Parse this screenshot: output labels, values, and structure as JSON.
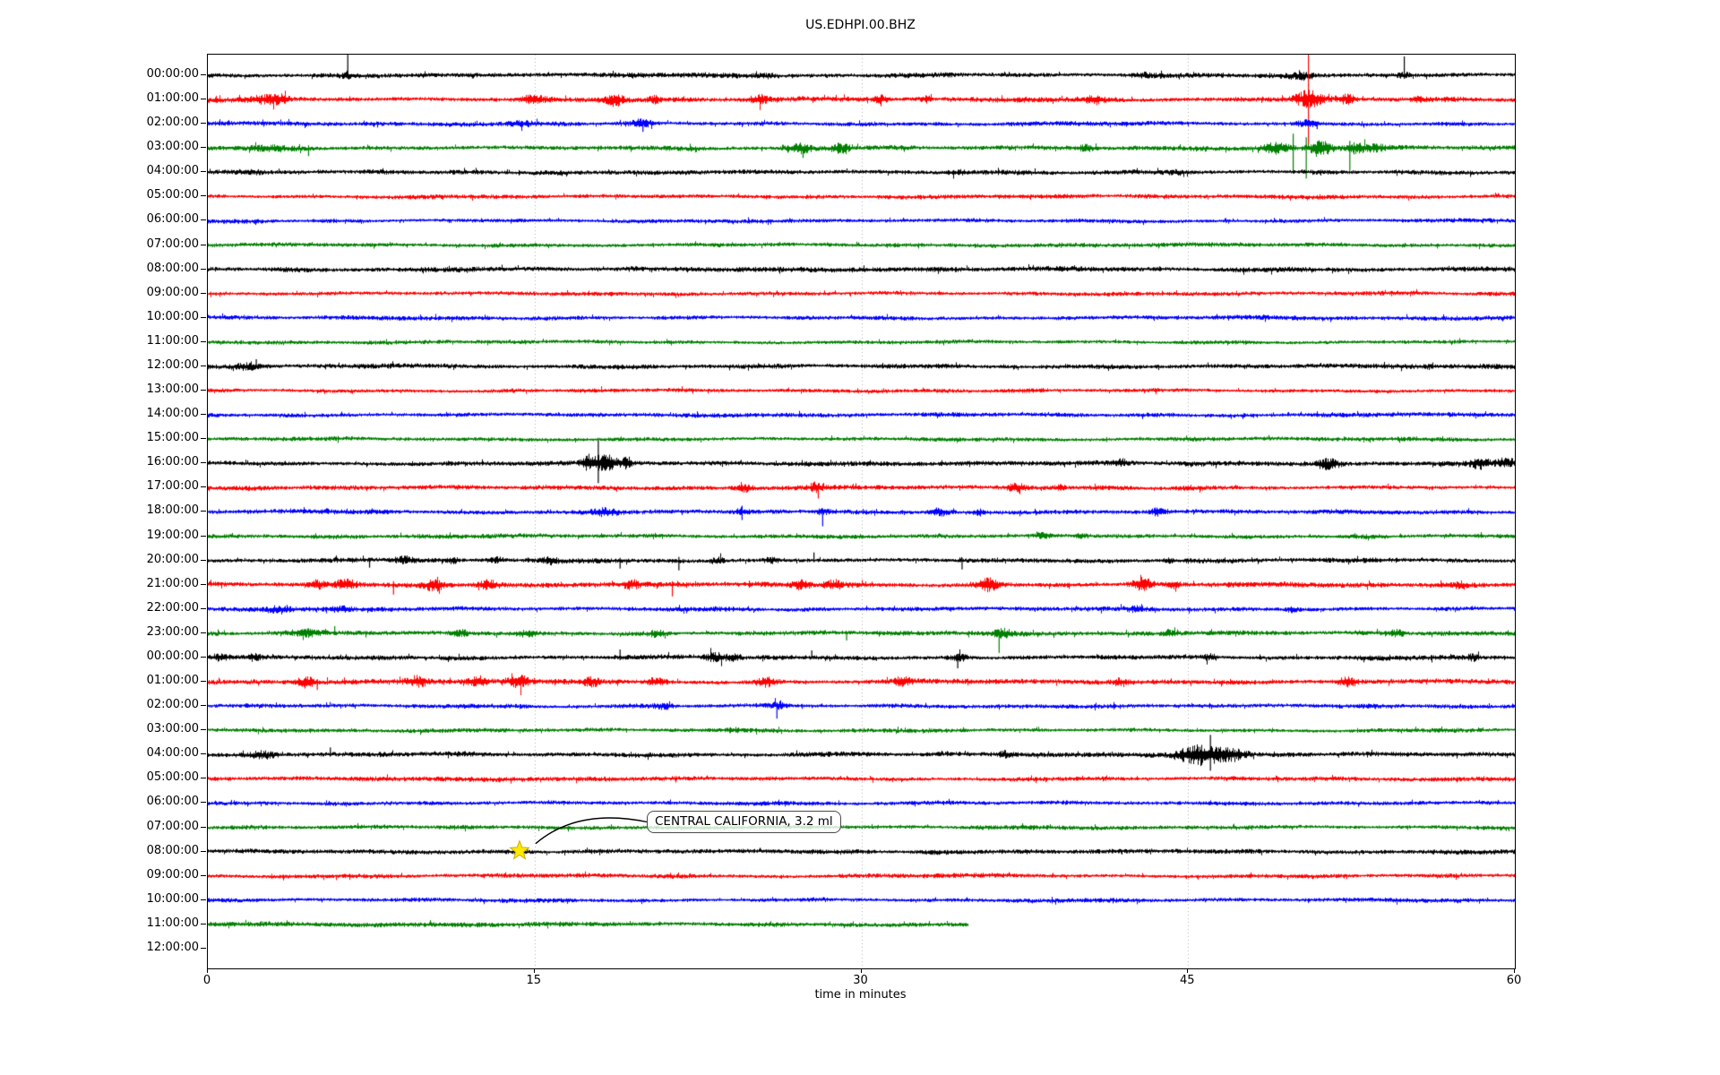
{
  "chart_data": {
    "type": "line",
    "subtype": "seismic-helicorder-dayplot",
    "title": "US.EDHPI.00.BHZ",
    "xlabel": "time in minutes",
    "xlim": [
      0,
      60
    ],
    "x_ticks": [
      0,
      15,
      30,
      45,
      60
    ],
    "minutes_per_row": 60,
    "grid": {
      "minutes": [
        15,
        30,
        45
      ],
      "color": "#b0b0b0",
      "style": "dotted"
    },
    "spine_color": "#000000",
    "background_color": "#ffffff",
    "trace_color_cycle": [
      "#000000",
      "#ff0000",
      "#0000ff",
      "#008000"
    ],
    "annotation": {
      "text": "CENTRAL CALIFORNIA, 3.2 ml",
      "row_index": 32,
      "row_label": "08:00:00",
      "minute": 14.35,
      "box_fill": "rgba(255,255,255,0.78)",
      "box_border": "#4a4a4a",
      "arrow_color": "#000000"
    },
    "marker": {
      "shape": "star",
      "fill": "#ffe900",
      "edge": "#c9b200",
      "row_index": 32,
      "minute": 14.35,
      "size": 11
    },
    "rows": [
      {
        "label": "00:00:00",
        "color_index": 0,
        "amp": 2.5,
        "end": 60,
        "events": [
          {
            "m": 6.4,
            "su": 23,
            "sd": 4
          },
          {
            "m": 6.4,
            "a": 2,
            "w": 0.2
          },
          {
            "m": 25.6,
            "a": 1.5,
            "w": 0.4
          },
          {
            "m": 43.0,
            "a": 1.5,
            "w": 0.3
          },
          {
            "m": 50.2,
            "a": 3,
            "w": 0.4
          },
          {
            "m": 54.9,
            "su": 21,
            "sd": 4
          },
          {
            "m": 54.9,
            "a": 2,
            "w": 0.2
          }
        ]
      },
      {
        "label": "01:00:00",
        "color_index": 1,
        "amp": 2.6,
        "end": 60,
        "events": [
          {
            "m": 2.6,
            "a": 3,
            "w": 0.5
          },
          {
            "m": 3.3,
            "a": 4,
            "w": 0.3
          },
          {
            "m": 14.9,
            "a": 4,
            "w": 0.35
          },
          {
            "m": 18.7,
            "a": 5,
            "w": 0.3
          },
          {
            "m": 20.5,
            "a": 3,
            "w": 0.2
          },
          {
            "m": 25.3,
            "a": 4,
            "w": 0.3
          },
          {
            "m": 30.9,
            "a": 3.5,
            "w": 0.25
          },
          {
            "m": 33.0,
            "a": 3,
            "w": 0.2
          },
          {
            "m": 40.7,
            "a": 3.5,
            "w": 0.3
          },
          {
            "m": 50.5,
            "su": 50,
            "sd": 52
          },
          {
            "m": 50.5,
            "a": 8,
            "w": 0.45
          },
          {
            "m": 52.3,
            "a": 4,
            "w": 0.3
          },
          {
            "m": 55.6,
            "a": 2,
            "w": 0.2
          }
        ]
      },
      {
        "label": "02:00:00",
        "color_index": 2,
        "amp": 2.3,
        "end": 60,
        "events": [
          {
            "m": 14.3,
            "a": 2.5,
            "w": 0.4
          },
          {
            "m": 19.9,
            "a": 3.5,
            "w": 0.3
          },
          {
            "m": 19.95,
            "sd": 9,
            "su": 3
          },
          {
            "m": 50.4,
            "a": 3,
            "w": 0.35
          },
          {
            "m": 50.9,
            "sd": 6
          }
        ]
      },
      {
        "label": "03:00:00",
        "color_index": 3,
        "amp": 2.5,
        "end": 60,
        "events": [
          {
            "m": 2.8,
            "a": 2.5,
            "w": 0.8
          },
          {
            "m": 4.6,
            "sd": 9,
            "su": 3
          },
          {
            "m": 27.2,
            "a": 4,
            "w": 0.4
          },
          {
            "m": 27.3,
            "sd": 11
          },
          {
            "m": 29.0,
            "a": 4,
            "w": 0.3
          },
          {
            "m": 40.3,
            "a": 2.5,
            "w": 0.25
          },
          {
            "m": 49.0,
            "a": 5,
            "w": 0.4
          },
          {
            "m": 49.8,
            "su": 16,
            "sd": 28
          },
          {
            "m": 50.4,
            "su": 12,
            "sd": 34
          },
          {
            "m": 51.1,
            "a": 8,
            "w": 0.35
          },
          {
            "m": 52.4,
            "su": 8,
            "sd": 25
          },
          {
            "m": 52.7,
            "a": 5,
            "w": 0.3
          },
          {
            "m": 53.6,
            "a": 3,
            "w": 0.3
          }
        ]
      },
      {
        "label": "04:00:00",
        "color_index": 0,
        "amp": 2.4,
        "end": 60,
        "events": [
          {
            "m": 2.0,
            "a": 1.5,
            "w": 0.5
          },
          {
            "m": 34.3,
            "a": 1.5,
            "w": 0.4
          },
          {
            "m": 44.6,
            "a": 1.5,
            "w": 0.3
          }
        ]
      },
      {
        "label": "05:00:00",
        "color_index": 1,
        "amp": 2.2,
        "end": 60,
        "events": []
      },
      {
        "label": "06:00:00",
        "color_index": 2,
        "amp": 2.1,
        "end": 60,
        "events": []
      },
      {
        "label": "07:00:00",
        "color_index": 3,
        "amp": 2.1,
        "end": 60,
        "events": []
      },
      {
        "label": "08:00:00",
        "color_index": 0,
        "amp": 2.6,
        "end": 60,
        "events": []
      },
      {
        "label": "09:00:00",
        "color_index": 1,
        "amp": 2.2,
        "end": 60,
        "events": []
      },
      {
        "label": "10:00:00",
        "color_index": 2,
        "amp": 2.2,
        "end": 60,
        "events": []
      },
      {
        "label": "11:00:00",
        "color_index": 3,
        "amp": 2.1,
        "end": 60,
        "events": []
      },
      {
        "label": "12:00:00",
        "color_index": 0,
        "amp": 2.6,
        "end": 60,
        "events": [
          {
            "m": 1.8,
            "a": 2.5,
            "w": 0.4
          },
          {
            "m": 2.2,
            "su": 8
          }
        ]
      },
      {
        "label": "13:00:00",
        "color_index": 1,
        "amp": 2.2,
        "end": 60,
        "events": []
      },
      {
        "label": "14:00:00",
        "color_index": 2,
        "amp": 2.2,
        "end": 60,
        "events": []
      },
      {
        "label": "15:00:00",
        "color_index": 3,
        "amp": 2.2,
        "end": 60,
        "events": []
      },
      {
        "label": "16:00:00",
        "color_index": 0,
        "amp": 2.5,
        "end": 60,
        "events": [
          {
            "m": 17.5,
            "a": 8,
            "w": 0.25
          },
          {
            "m": 17.9,
            "su": 26,
            "sd": 22
          },
          {
            "m": 18.3,
            "a": 9,
            "w": 0.35
          },
          {
            "m": 19.2,
            "a": 6,
            "w": 0.15
          },
          {
            "m": 41.9,
            "a": 2.5,
            "w": 0.2
          },
          {
            "m": 51.4,
            "a": 5,
            "w": 0.4
          },
          {
            "m": 58.4,
            "a": 5,
            "w": 0.3
          },
          {
            "m": 59.6,
            "a": 4,
            "w": 0.3
          }
        ]
      },
      {
        "label": "17:00:00",
        "color_index": 1,
        "amp": 2.4,
        "end": 60,
        "events": [
          {
            "m": 24.6,
            "a": 3,
            "w": 0.3
          },
          {
            "m": 27.9,
            "a": 4,
            "w": 0.2
          },
          {
            "m": 28.0,
            "sd": 12,
            "su": 3
          },
          {
            "m": 37.1,
            "a": 4,
            "w": 0.25
          },
          {
            "m": 39.1,
            "a": 2.5,
            "w": 0.2
          }
        ]
      },
      {
        "label": "18:00:00",
        "color_index": 2,
        "amp": 2.4,
        "end": 60,
        "events": [
          {
            "m": 18.2,
            "a": 3,
            "w": 0.4
          },
          {
            "m": 24.5,
            "su": 7,
            "sd": 9
          },
          {
            "m": 24.5,
            "a": 3,
            "w": 0.2
          },
          {
            "m": 28.2,
            "sd": 16,
            "su": 4
          },
          {
            "m": 28.2,
            "a": 3,
            "w": 0.2
          },
          {
            "m": 33.6,
            "a": 3.5,
            "w": 0.3
          },
          {
            "m": 35.4,
            "a": 2.5,
            "w": 0.2
          },
          {
            "m": 43.6,
            "a": 3.5,
            "w": 0.3
          }
        ]
      },
      {
        "label": "19:00:00",
        "color_index": 3,
        "amp": 2.3,
        "end": 60,
        "events": [
          {
            "m": 38.4,
            "a": 3,
            "w": 0.3
          },
          {
            "m": 40.1,
            "a": 2.5,
            "w": 0.2
          }
        ]
      },
      {
        "label": "20:00:00",
        "color_index": 0,
        "amp": 2.5,
        "end": 60,
        "events": [
          {
            "m": 7.4,
            "sd": 8,
            "su": 3
          },
          {
            "m": 9.0,
            "a": 3,
            "w": 0.3
          },
          {
            "m": 11.2,
            "a": 2.5,
            "w": 0.2
          },
          {
            "m": 13.2,
            "a": 2.5,
            "w": 0.25
          },
          {
            "m": 15.7,
            "a": 2.5,
            "w": 0.3
          },
          {
            "m": 18.9,
            "sd": 9,
            "su": 3
          },
          {
            "m": 21.6,
            "sd": 11,
            "su": 4
          },
          {
            "m": 23.4,
            "a": 3,
            "w": 0.2
          },
          {
            "m": 25.9,
            "a": 2.5,
            "w": 0.3
          },
          {
            "m": 27.8,
            "su": 9
          },
          {
            "m": 34.6,
            "sd": 10,
            "su": 3
          },
          {
            "m": 44.1,
            "a": 2.5,
            "w": 0.2
          }
        ]
      },
      {
        "label": "21:00:00",
        "color_index": 1,
        "amp": 2.8,
        "end": 60,
        "events": [
          {
            "m": 5.0,
            "a": 4,
            "w": 0.3
          },
          {
            "m": 6.3,
            "a": 5,
            "w": 0.35
          },
          {
            "m": 8.5,
            "sd": 11,
            "su": 4
          },
          {
            "m": 10.4,
            "a": 5,
            "w": 0.3
          },
          {
            "m": 12.9,
            "a": 4.5,
            "w": 0.3
          },
          {
            "m": 19.4,
            "a": 3.5,
            "w": 0.25
          },
          {
            "m": 21.3,
            "sd": 13,
            "su": 4
          },
          {
            "m": 27.2,
            "a": 4,
            "w": 0.3
          },
          {
            "m": 28.7,
            "a": 4,
            "w": 0.3
          },
          {
            "m": 35.8,
            "a": 6,
            "w": 0.3
          },
          {
            "m": 42.9,
            "a": 6,
            "w": 0.35
          },
          {
            "m": 44.3,
            "a": 3.5,
            "w": 0.2
          },
          {
            "m": 57.5,
            "a": 2.5,
            "w": 0.2
          }
        ]
      },
      {
        "label": "22:00:00",
        "color_index": 2,
        "amp": 2.3,
        "end": 60,
        "events": [
          {
            "m": 3.3,
            "a": 3,
            "w": 0.4
          },
          {
            "m": 6.1,
            "a": 2.5,
            "w": 0.3
          },
          {
            "m": 42.6,
            "a": 2.5,
            "w": 0.3
          },
          {
            "m": 49.8,
            "a": 2.5,
            "w": 0.2
          }
        ]
      },
      {
        "label": "23:00:00",
        "color_index": 3,
        "amp": 2.4,
        "end": 60,
        "events": [
          {
            "m": 4.5,
            "a": 4,
            "w": 0.4
          },
          {
            "m": 5.8,
            "su": 8
          },
          {
            "m": 11.6,
            "a": 2.5,
            "w": 0.3
          },
          {
            "m": 14.6,
            "a": 3,
            "w": 0.3
          },
          {
            "m": 20.6,
            "a": 2.5,
            "w": 0.3
          },
          {
            "m": 29.3,
            "sd": 8
          },
          {
            "m": 36.3,
            "sd": 22,
            "su": 4
          },
          {
            "m": 36.5,
            "a": 4,
            "w": 0.3
          },
          {
            "m": 44.1,
            "a": 2.5,
            "w": 0.2
          },
          {
            "m": 54.6,
            "a": 3,
            "w": 0.25
          }
        ]
      },
      {
        "label": "00:00:00",
        "color_index": 0,
        "amp": 2.5,
        "end": 60,
        "events": [
          {
            "m": 0.5,
            "a": 3,
            "w": 0.3
          },
          {
            "m": 2.1,
            "a": 2.5,
            "w": 0.2
          },
          {
            "m": 18.9,
            "su": 9,
            "sd": 3
          },
          {
            "m": 23.3,
            "a": 5,
            "w": 0.3
          },
          {
            "m": 24.1,
            "a": 4,
            "w": 0.2
          },
          {
            "m": 27.7,
            "su": 8
          },
          {
            "m": 34.4,
            "sd": 12,
            "su": 4
          },
          {
            "m": 34.5,
            "a": 3,
            "w": 0.3
          },
          {
            "m": 46.0,
            "a": 2.5,
            "w": 0.2
          },
          {
            "m": 58.1,
            "a": 2.5,
            "w": 0.2
          }
        ]
      },
      {
        "label": "01:00:00",
        "color_index": 1,
        "amp": 2.6,
        "end": 60,
        "events": [
          {
            "m": 4.5,
            "a": 5,
            "w": 0.3
          },
          {
            "m": 5.0,
            "sd": 9,
            "su": 3
          },
          {
            "m": 9.6,
            "a": 5,
            "w": 0.35
          },
          {
            "m": 12.4,
            "a": 5,
            "w": 0.3
          },
          {
            "m": 14.3,
            "a": 6,
            "w": 0.35
          },
          {
            "m": 17.6,
            "a": 4,
            "w": 0.25
          },
          {
            "m": 20.6,
            "a": 4,
            "w": 0.3
          },
          {
            "m": 25.6,
            "a": 4,
            "w": 0.3
          },
          {
            "m": 31.9,
            "a": 3.5,
            "w": 0.25
          },
          {
            "m": 41.9,
            "a": 3,
            "w": 0.2
          },
          {
            "m": 52.3,
            "a": 4,
            "w": 0.3
          }
        ]
      },
      {
        "label": "02:00:00",
        "color_index": 2,
        "amp": 2.3,
        "end": 60,
        "events": [
          {
            "m": 20.9,
            "a": 2.5,
            "w": 0.3
          },
          {
            "m": 26.1,
            "sd": 14,
            "su": 4
          },
          {
            "m": 26.2,
            "a": 3,
            "w": 0.2
          }
        ]
      },
      {
        "label": "03:00:00",
        "color_index": 3,
        "amp": 2.2,
        "end": 60,
        "events": [
          {
            "m": 24.1,
            "a": 1.5,
            "w": 0.3
          }
        ]
      },
      {
        "label": "04:00:00",
        "color_index": 0,
        "amp": 2.5,
        "end": 60,
        "events": [
          {
            "m": 2.5,
            "a": 3,
            "w": 0.4
          },
          {
            "m": 5.6,
            "su": 8
          },
          {
            "m": 36.6,
            "a": 2.5,
            "w": 0.2
          },
          {
            "m": 44.9,
            "a": 5,
            "w": 0.5
          },
          {
            "m": 45.7,
            "a": 9,
            "w": 0.4
          },
          {
            "m": 46.0,
            "su": 22,
            "sd": 18
          },
          {
            "m": 46.6,
            "a": 7,
            "w": 0.4
          },
          {
            "m": 47.4,
            "a": 3.5,
            "w": 0.3
          }
        ]
      },
      {
        "label": "05:00:00",
        "color_index": 1,
        "amp": 2.3,
        "end": 60,
        "events": []
      },
      {
        "label": "06:00:00",
        "color_index": 2,
        "amp": 2.2,
        "end": 60,
        "events": []
      },
      {
        "label": "07:00:00",
        "color_index": 3,
        "amp": 2.2,
        "end": 60,
        "events": []
      },
      {
        "label": "08:00:00",
        "color_index": 0,
        "amp": 2.4,
        "end": 60,
        "events": []
      },
      {
        "label": "09:00:00",
        "color_index": 1,
        "amp": 2.3,
        "end": 60,
        "events": []
      },
      {
        "label": "10:00:00",
        "color_index": 2,
        "amp": 2.2,
        "end": 60,
        "events": []
      },
      {
        "label": "11:00:00",
        "color_index": 3,
        "amp": 2.4,
        "end": 34.9,
        "events": []
      },
      {
        "label": "12:00:00",
        "color_index": null,
        "amp": 0,
        "end": 0,
        "events": []
      }
    ]
  }
}
